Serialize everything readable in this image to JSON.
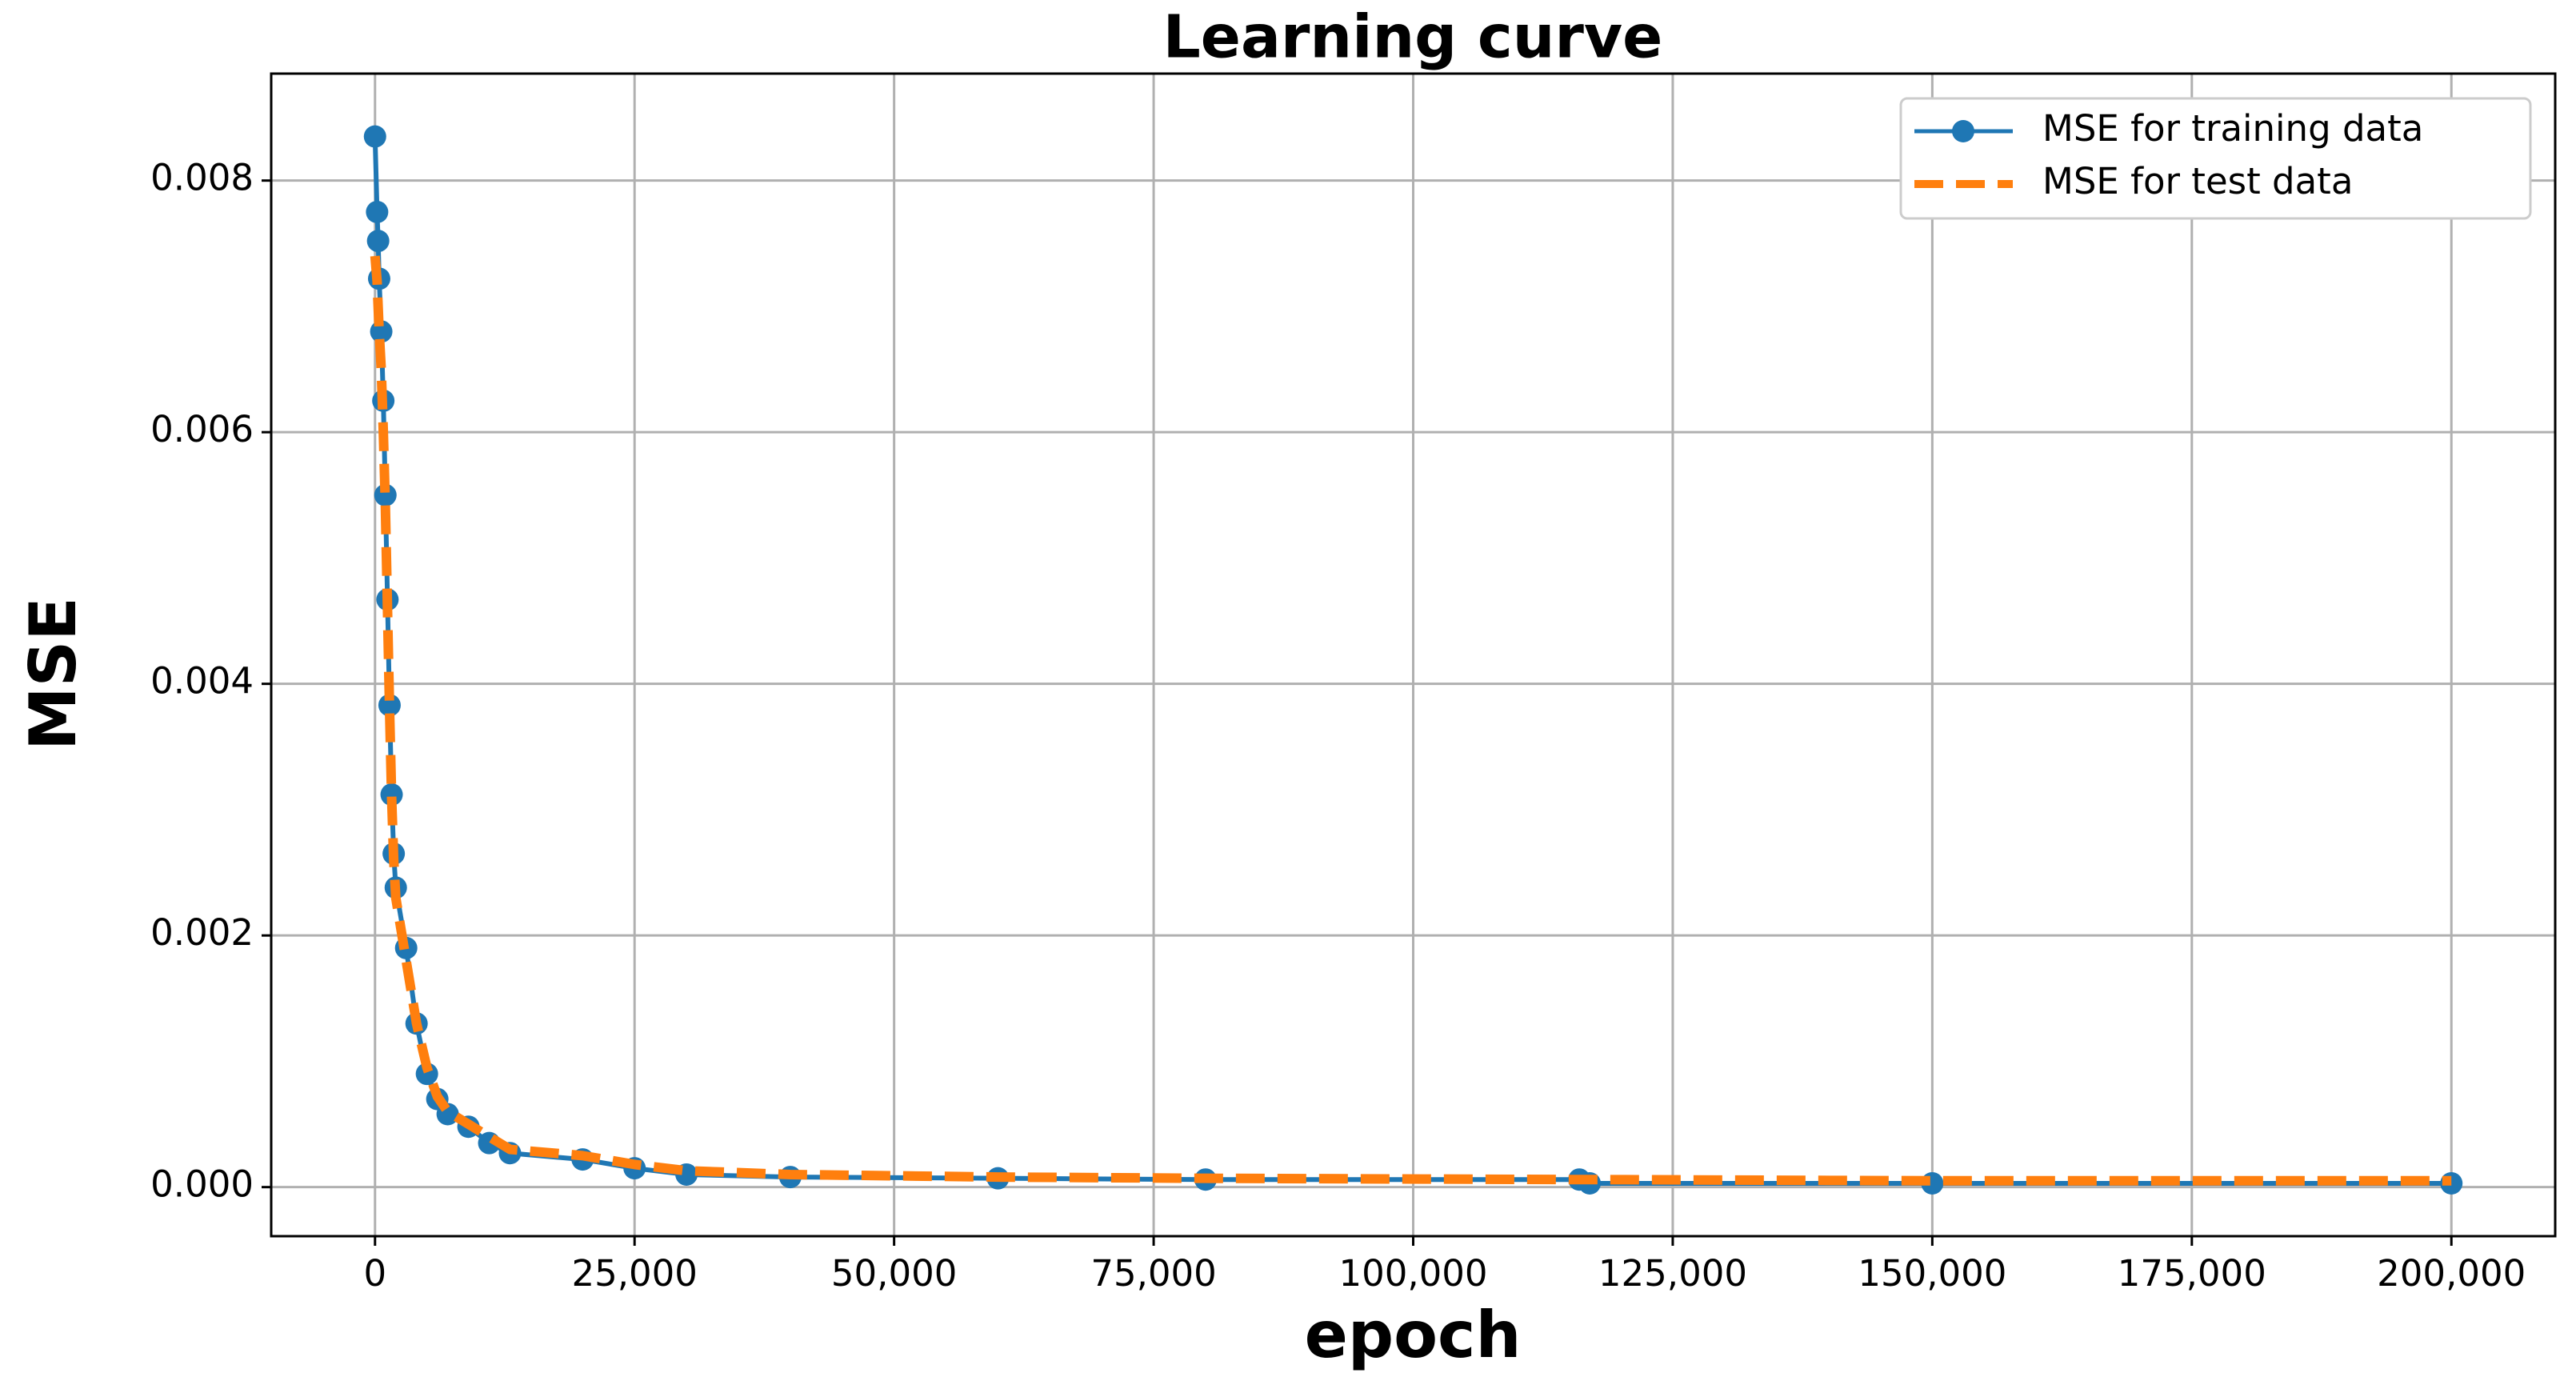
{
  "chart_data": {
    "type": "line",
    "title": "Learning curve",
    "x_label": "epoch",
    "y_label": "MSE",
    "x": [
      0,
      200,
      300,
      400,
      600,
      800,
      1000,
      1200,
      1400,
      1600,
      1800,
      2000,
      3000,
      4000,
      5000,
      6000,
      7000,
      9000,
      11000,
      13000,
      20000,
      25000,
      30000,
      40000,
      60000,
      80000,
      116000,
      117000,
      150000,
      200000
    ],
    "series": [
      {
        "name": "MSE for training data",
        "color": "#1f77b4",
        "style": "solid-marker",
        "values": [
          0.00835,
          0.00775,
          0.00752,
          0.00722,
          0.0068,
          0.00625,
          0.0055,
          0.00467,
          0.00383,
          0.00312,
          0.00265,
          0.00238,
          0.0019,
          0.0013,
          0.0009,
          0.0007,
          0.00058,
          0.00048,
          0.00035,
          0.00027,
          0.00022,
          0.00015,
          0.0001,
          8e-05,
          7e-05,
          6e-05,
          6e-05,
          3e-05,
          3e-05,
          3e-05
        ]
      },
      {
        "name": "MSE for test data",
        "color": "#ff7f0e",
        "style": "dashed",
        "values": [
          0.0074,
          0.0072,
          0.007,
          0.0068,
          0.0065,
          0.006,
          0.0054,
          0.0046,
          0.0038,
          0.0031,
          0.0026,
          0.0023,
          0.0018,
          0.0013,
          0.00095,
          0.00072,
          0.0006,
          0.0005,
          0.0004,
          0.0003,
          0.00025,
          0.00018,
          0.00013,
          0.0001,
          8e-05,
          7e-05,
          6e-05,
          6e-05,
          5e-05,
          5e-05
        ]
      }
    ],
    "xlim": [
      -10000,
      210000
    ],
    "xticks": [
      0,
      {
        "value": 25000,
        "label": "25,000"
      },
      {
        "value": 50000,
        "label": "50,000"
      },
      {
        "value": 75000,
        "label": "75,000"
      },
      {
        "value": 100000,
        "label": "100,000"
      },
      {
        "value": 125000,
        "label": "125,000"
      },
      {
        "value": 150000,
        "label": "150,000"
      },
      {
        "value": 175000,
        "label": "175,000"
      },
      {
        "value": 200000,
        "label": "200,000"
      }
    ],
    "ylim": [
      -0.00039,
      0.00885
    ],
    "yticks": [
      {
        "value": 0,
        "label": "0.000"
      },
      0.002,
      0.004,
      0.006,
      0.008
    ],
    "grid": true,
    "legend": "upper-right"
  }
}
